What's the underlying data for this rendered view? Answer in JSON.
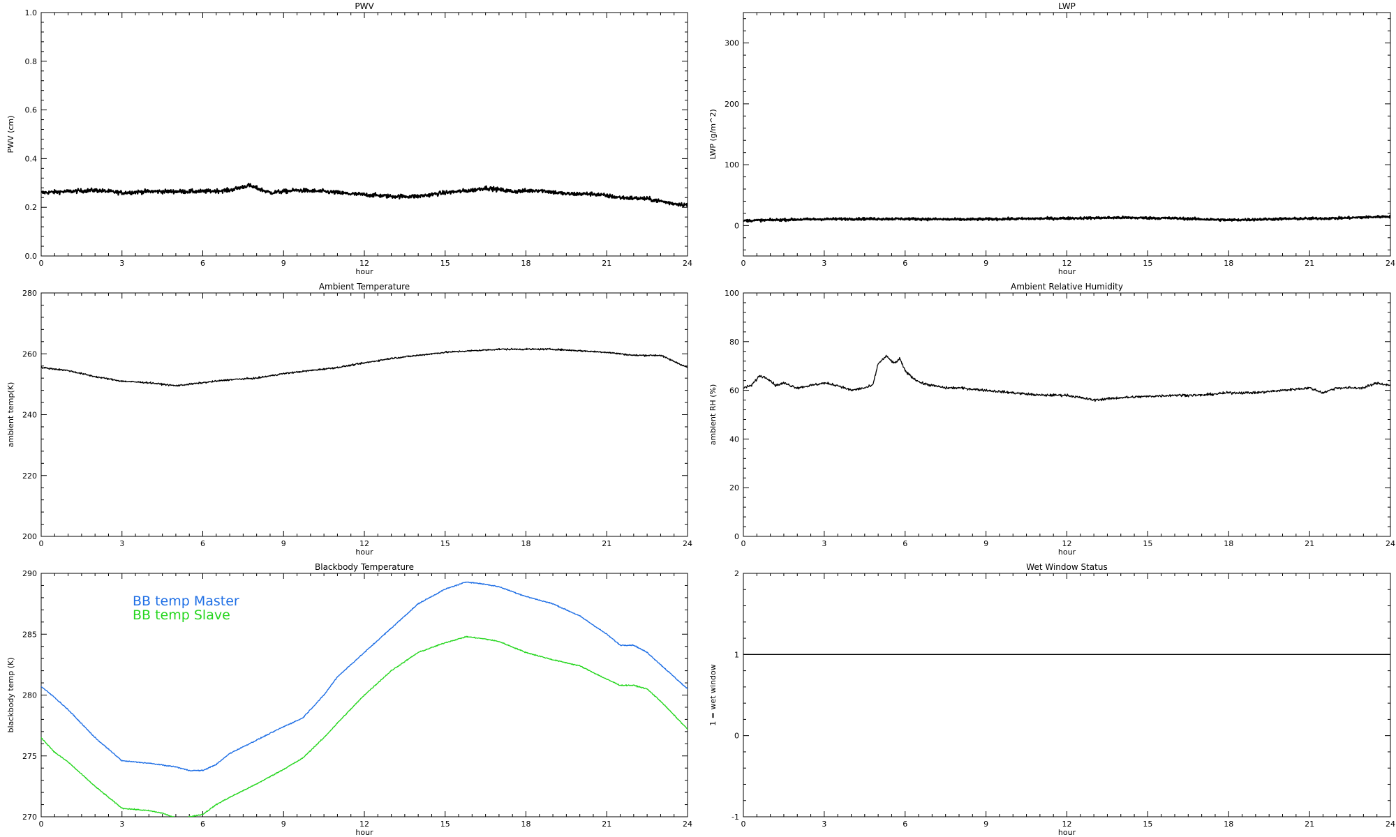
{
  "chart_data": [
    {
      "id": "pwv",
      "type": "line",
      "title": "PWV",
      "xlabel": "hour",
      "ylabel": "PWV (cm)",
      "xlim": [
        0,
        24
      ],
      "ylim": [
        0,
        1.0
      ],
      "xticks": [
        0,
        3,
        6,
        9,
        12,
        15,
        18,
        21,
        24
      ],
      "yticks": [
        0.0,
        0.2,
        0.4,
        0.6,
        0.8,
        1.0
      ],
      "ytick_labels": [
        "0.0",
        "0.2",
        "0.4",
        "0.6",
        "0.8",
        "1.0"
      ],
      "series": [
        {
          "color": "#000000",
          "noise": 0.008,
          "thick": 2.2,
          "x": [
            0,
            1,
            2,
            3,
            4,
            5,
            6,
            7,
            7.7,
            8.5,
            9.5,
            10.5,
            11.5,
            12.3,
            13,
            14,
            15,
            16,
            16.5,
            17.5,
            18.5,
            19.5,
            20.5,
            21.5,
            22.5,
            23.5,
            24
          ],
          "y": [
            0.26,
            0.265,
            0.27,
            0.26,
            0.265,
            0.265,
            0.265,
            0.27,
            0.29,
            0.26,
            0.27,
            0.265,
            0.255,
            0.25,
            0.245,
            0.245,
            0.26,
            0.27,
            0.28,
            0.265,
            0.27,
            0.255,
            0.255,
            0.24,
            0.235,
            0.215,
            0.21
          ]
        }
      ]
    },
    {
      "id": "lwp",
      "type": "line",
      "title": "LWP",
      "xlabel": "hour",
      "ylabel": "LWP (g/m^2)",
      "xlim": [
        0,
        24
      ],
      "ylim": [
        -50,
        350
      ],
      "xticks": [
        0,
        3,
        6,
        9,
        12,
        15,
        18,
        21,
        24
      ],
      "yticks": [
        0,
        100,
        200,
        300
      ],
      "ytick_labels": [
        "0",
        "100",
        "200",
        "300"
      ],
      "series": [
        {
          "color": "#000000",
          "noise": 1.8,
          "thick": 2.4,
          "x": [
            0,
            2,
            4,
            6,
            8,
            10,
            12,
            14,
            16,
            18,
            20,
            22,
            24
          ],
          "y": [
            8,
            10,
            11,
            11,
            10,
            11,
            12,
            13,
            12,
            9,
            11,
            12,
            15
          ]
        }
      ]
    },
    {
      "id": "ambient-temp",
      "type": "line",
      "title": "Ambient Temperature",
      "xlabel": "hour",
      "ylabel": "ambient temp(K)",
      "xlim": [
        0,
        24
      ],
      "ylim": [
        200,
        280
      ],
      "xticks": [
        0,
        3,
        6,
        9,
        12,
        15,
        18,
        21,
        24
      ],
      "yticks": [
        200,
        220,
        240,
        260,
        280
      ],
      "ytick_labels": [
        "200",
        "220",
        "240",
        "260",
        "280"
      ],
      "series": [
        {
          "color": "#000000",
          "noise": 0.25,
          "thick": 1.4,
          "x": [
            0,
            1,
            2,
            3,
            4,
            5,
            6,
            7,
            8,
            9,
            10,
            11,
            12,
            13,
            14,
            15,
            16,
            17,
            18,
            19,
            20,
            21,
            22,
            23,
            24
          ],
          "y": [
            255.5,
            254.5,
            252.5,
            251.0,
            250.5,
            249.5,
            250.5,
            251.5,
            252.0,
            253.5,
            254.5,
            255.5,
            257.0,
            258.5,
            259.5,
            260.5,
            261.0,
            261.5,
            261.5,
            261.5,
            261.0,
            260.5,
            259.5,
            259.5,
            255.5
          ]
        }
      ]
    },
    {
      "id": "ambient-rh",
      "type": "line",
      "title": "Ambient Relative Humidity",
      "xlabel": "hour",
      "ylabel": "ambient RH (%)",
      "xlim": [
        0,
        24
      ],
      "ylim": [
        0,
        100
      ],
      "xticks": [
        0,
        3,
        6,
        9,
        12,
        15,
        18,
        21,
        24
      ],
      "yticks": [
        0,
        20,
        40,
        60,
        80,
        100
      ],
      "ytick_labels": [
        "0",
        "20",
        "40",
        "60",
        "80",
        "100"
      ],
      "series": [
        {
          "color": "#000000",
          "noise": 0.5,
          "thick": 1.3,
          "x": [
            0,
            0.3,
            0.6,
            0.9,
            1.2,
            1.5,
            2,
            2.5,
            3,
            3.5,
            4,
            4.5,
            4.8,
            5.0,
            5.3,
            5.6,
            5.8,
            6.0,
            6.3,
            6.6,
            7,
            7.5,
            8,
            9,
            10,
            11,
            12,
            13,
            14,
            15,
            16,
            17,
            18,
            19,
            20,
            21,
            21.5,
            22,
            23,
            23.5,
            24
          ],
          "y": [
            61,
            62,
            66,
            65,
            62,
            63,
            61,
            62,
            63,
            62,
            60,
            61,
            62,
            71,
            74,
            71,
            73,
            68,
            65,
            63,
            62,
            61,
            61,
            60,
            59,
            58,
            58,
            56,
            57,
            57.5,
            58,
            58,
            59,
            59,
            60,
            61,
            59,
            61,
            61,
            63,
            62
          ]
        }
      ]
    },
    {
      "id": "blackbody-temp",
      "type": "line",
      "title": "Blackbody Temperature",
      "xlabel": "hour",
      "ylabel": "blackbody temp (K)",
      "xlim": [
        0,
        24
      ],
      "ylim": [
        270,
        290
      ],
      "xticks": [
        0,
        3,
        6,
        9,
        12,
        15,
        18,
        21,
        24
      ],
      "yticks": [
        270,
        275,
        280,
        285,
        290
      ],
      "ytick_labels": [
        "270",
        "275",
        "280",
        "285",
        "290"
      ],
      "legend_placement": "top-left",
      "series": [
        {
          "name": "BB temp Master",
          "color": "#1f6fe5",
          "noise": 0.04,
          "thick": 1.4,
          "x": [
            0,
            0.5,
            1,
            2,
            3,
            3.5,
            4,
            5,
            5.5,
            6,
            6.5,
            7,
            8,
            9,
            9.7,
            10.5,
            11,
            12,
            13,
            14,
            15,
            15.8,
            16.5,
            17,
            18,
            19,
            20,
            21,
            21.5,
            22,
            22.5,
            23,
            24
          ],
          "y": [
            280.7,
            279.8,
            278.8,
            276.5,
            274.6,
            274.5,
            274.4,
            274.1,
            273.8,
            273.8,
            274.3,
            275.2,
            276.3,
            277.4,
            278.1,
            280.0,
            281.5,
            283.5,
            285.5,
            287.5,
            288.7,
            289.3,
            289.1,
            288.9,
            288.1,
            287.5,
            286.5,
            285.0,
            284.1,
            284.1,
            283.5,
            282.5,
            280.5
          ]
        },
        {
          "name": "BB temp Slave",
          "color": "#26d61f",
          "noise": 0.04,
          "thick": 1.4,
          "x": [
            0,
            0.5,
            1,
            2,
            3,
            3.5,
            4,
            4.5,
            5,
            5.3,
            5.5,
            6,
            6.5,
            7,
            8,
            9,
            9.7,
            10.5,
            11,
            12,
            13,
            14,
            15,
            15.8,
            16.5,
            17,
            18,
            19,
            20,
            21,
            21.5,
            22,
            22.5,
            23,
            24
          ],
          "y": [
            276.5,
            275.3,
            274.5,
            272.5,
            270.7,
            270.6,
            270.5,
            270.3,
            269.9,
            269.8,
            270.0,
            270.2,
            271.0,
            271.6,
            272.7,
            273.9,
            274.8,
            276.5,
            277.7,
            280.0,
            282.0,
            283.5,
            284.3,
            284.8,
            284.6,
            284.4,
            283.5,
            282.9,
            282.4,
            281.3,
            280.8,
            280.8,
            280.5,
            279.5,
            277.2
          ]
        }
      ]
    },
    {
      "id": "wet-window",
      "type": "line",
      "title": "Wet Window Status",
      "xlabel": "hour",
      "ylabel": "1 = wet window",
      "xlim": [
        0,
        24
      ],
      "ylim": [
        -1,
        2
      ],
      "xticks": [
        0,
        3,
        6,
        9,
        12,
        15,
        18,
        21,
        24
      ],
      "yticks": [
        -1,
        0,
        1,
        2
      ],
      "ytick_labels": [
        "-1",
        "0",
        "1",
        "2"
      ],
      "series": [
        {
          "color": "#000000",
          "noise": 0,
          "thick": 1.3,
          "x": [
            0,
            24
          ],
          "y": [
            1,
            1
          ]
        }
      ]
    }
  ]
}
